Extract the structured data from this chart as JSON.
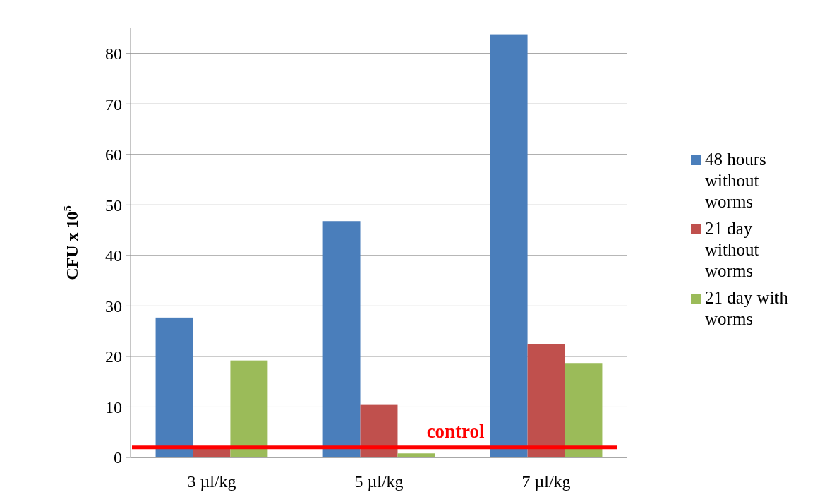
{
  "chart_data": {
    "type": "bar",
    "ylabel": "CFU x 10$^{5}$",
    "categories": [
      "3 µl/kg",
      "5 µl/kg",
      "7 µl/kg"
    ],
    "series": [
      {
        "name": "48 hours without worms",
        "color": "#4a7ebb",
        "values": [
          27.7,
          46.8,
          83.8
        ]
      },
      {
        "name": "21 day without worms",
        "color": "#c0504d",
        "values": [
          1.8,
          10.4,
          22.4
        ]
      },
      {
        "name": "21 day with worms",
        "color": "#9bbb59",
        "values": [
          19.2,
          0.8,
          18.7
        ]
      }
    ],
    "ylim": [
      0,
      85
    ],
    "yticks": [
      0,
      10,
      20,
      30,
      40,
      50,
      60,
      70,
      80
    ],
    "grid": "y",
    "legend": "right",
    "ref_lines": [
      {
        "axis": "y",
        "value": 2,
        "label": "control",
        "color": "#ff0000"
      }
    ]
  }
}
